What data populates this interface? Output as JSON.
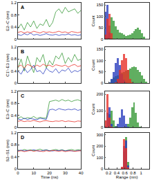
{
  "chart_data": [
    {
      "type": "line",
      "title": "A",
      "y_label": "E2–C (nm)",
      "tick_labels": "y",
      "x": [
        0,
        2,
        4,
        6,
        8,
        10,
        12,
        14,
        16,
        18,
        20,
        22,
        24,
        26,
        28,
        30,
        32,
        34,
        36,
        38,
        40
      ],
      "xlim": [
        0,
        40
      ],
      "xticks": [
        0,
        10,
        20,
        30,
        40
      ],
      "ylim": [
        0,
        1.2
      ],
      "yticks": [
        0,
        0.4,
        0.8,
        1.2
      ],
      "series": [
        {
          "color": "#3a9a3a",
          "values": [
            0.35,
            0.5,
            0.3,
            0.55,
            0.4,
            0.6,
            0.35,
            0.5,
            0.45,
            0.65,
            0.4,
            0.55,
            0.9,
            1.0,
            0.85,
            1.05,
            0.9,
            0.95,
            1.0,
            0.85,
            0.95
          ]
        },
        {
          "color": "#2b3fbf",
          "values": [
            0.15,
            0.12,
            0.18,
            0.14,
            0.2,
            0.13,
            0.16,
            0.12,
            0.15,
            0.18,
            0.14,
            0.13,
            0.16,
            0.12,
            0.15,
            0.14,
            0.17,
            0.13,
            0.15,
            0.12,
            0.14
          ]
        },
        {
          "color": "#e8312a",
          "values": [
            0.22,
            0.25,
            0.2,
            0.24,
            0.21,
            0.26,
            0.23,
            0.2,
            0.25,
            0.22,
            0.24,
            0.21,
            0.23,
            0.26,
            0.22,
            0.24,
            0.2,
            0.25,
            0.23,
            0.21,
            0.24
          ]
        }
      ]
    },
    {
      "type": "histogram",
      "y_label": "Count",
      "tick_labels": "y",
      "bins": [
        0.1,
        0.15,
        0.2,
        0.25,
        0.3,
        0.35,
        0.4,
        0.45,
        0.5,
        0.55,
        0.6,
        0.65,
        0.7,
        0.75,
        0.8,
        0.85,
        0.9,
        0.95,
        1.0,
        1.05,
        1.1,
        1.15,
        1.2
      ],
      "xlim": [
        0.1,
        1.2
      ],
      "xticks": [
        0.2,
        0.4,
        0.6,
        0.8,
        1
      ],
      "ylim": [
        0,
        160
      ],
      "yticks": [
        0,
        50,
        100,
        150
      ],
      "series": [
        {
          "color": "#3a9a3a",
          "values": [
            0,
            10,
            60,
            95,
            80,
            55,
            40,
            30,
            25,
            20,
            15,
            18,
            20,
            25,
            35,
            45,
            50,
            40,
            25,
            10,
            3,
            0
          ]
        },
        {
          "color": "#2b3fbf",
          "values": [
            120,
            150,
            30,
            2,
            0,
            0,
            0,
            0,
            0,
            0,
            0,
            0,
            0,
            0,
            0,
            0,
            0,
            0,
            0,
            0,
            0,
            0
          ]
        },
        {
          "color": "#e8312a",
          "values": [
            20,
            90,
            110,
            25,
            3,
            0,
            0,
            0,
            0,
            0,
            0,
            0,
            0,
            0,
            0,
            0,
            0,
            0,
            0,
            0,
            0,
            0
          ]
        }
      ]
    },
    {
      "type": "line",
      "title": "B",
      "y_label": "C1'–E3 (nm)",
      "tick_labels": "y",
      "x": [
        0,
        2,
        4,
        6,
        8,
        10,
        12,
        14,
        16,
        18,
        20,
        22,
        24,
        26,
        28,
        30,
        32,
        34,
        36,
        38,
        40
      ],
      "xlim": [
        0,
        40
      ],
      "xticks": [
        0,
        10,
        20,
        30,
        40
      ],
      "ylim": [
        0,
        1.2
      ],
      "yticks": [
        0,
        0.4,
        0.8,
        1.2
      ],
      "series": [
        {
          "color": "#3a9a3a",
          "values": [
            0.5,
            0.8,
            0.4,
            0.9,
            0.6,
            0.35,
            0.85,
            0.7,
            0.95,
            0.5,
            0.75,
            0.6,
            0.9,
            0.8,
            1.0,
            0.65,
            0.85,
            0.7,
            0.95,
            0.75,
            0.8
          ]
        },
        {
          "color": "#2b3fbf",
          "values": [
            0.4,
            0.3,
            0.5,
            0.35,
            0.45,
            0.6,
            0.38,
            0.42,
            0.3,
            0.5,
            0.4,
            0.36,
            0.48,
            0.33,
            0.44,
            0.4,
            0.5,
            0.35,
            0.42,
            0.38,
            0.45
          ]
        },
        {
          "color": "#e8312a",
          "values": [
            0.55,
            0.6,
            0.5,
            0.62,
            0.58,
            0.52,
            0.6,
            0.55,
            0.63,
            0.57,
            0.6,
            0.54,
            0.61,
            0.58,
            0.56,
            0.6,
            0.53,
            0.59,
            0.62,
            0.55,
            0.58
          ]
        }
      ]
    },
    {
      "type": "histogram",
      "y_label": "Count",
      "tick_labels": "y",
      "bins": [
        0.1,
        0.15,
        0.2,
        0.25,
        0.3,
        0.35,
        0.4,
        0.45,
        0.5,
        0.55,
        0.6,
        0.65,
        0.7,
        0.75,
        0.8,
        0.85,
        0.9,
        0.95,
        1.0,
        1.05,
        1.1,
        1.15,
        1.2
      ],
      "xlim": [
        0.1,
        1.2
      ],
      "xticks": [
        0.2,
        0.4,
        0.6,
        0.8,
        1
      ],
      "ylim": [
        0,
        160
      ],
      "yticks": [
        0,
        50,
        100,
        150
      ],
      "series": [
        {
          "color": "#3a9a3a",
          "values": [
            0,
            0,
            5,
            15,
            25,
            30,
            35,
            40,
            45,
            50,
            55,
            60,
            65,
            70,
            75,
            70,
            60,
            50,
            35,
            20,
            8,
            2
          ]
        },
        {
          "color": "#2b3fbf",
          "values": [
            0,
            0,
            5,
            20,
            50,
            90,
            110,
            80,
            40,
            15,
            5,
            2,
            0,
            0,
            0,
            0,
            0,
            0,
            0,
            0,
            0,
            0
          ]
        },
        {
          "color": "#e8312a",
          "values": [
            0,
            0,
            0,
            0,
            0,
            5,
            20,
            60,
            100,
            130,
            110,
            60,
            20,
            5,
            0,
            0,
            0,
            0,
            0,
            0,
            0,
            0
          ]
        }
      ]
    },
    {
      "type": "line",
      "title": "C",
      "y_label": "E3–C (nm)",
      "tick_labels": "y",
      "x": [
        0,
        2,
        4,
        6,
        8,
        10,
        12,
        14,
        16,
        18,
        20,
        22,
        24,
        26,
        28,
        30,
        32,
        34,
        36,
        38,
        40
      ],
      "xlim": [
        0,
        40
      ],
      "xticks": [
        0,
        10,
        20,
        30,
        40
      ],
      "ylim": [
        0,
        1.2
      ],
      "yticks": [
        0,
        0.4,
        0.8,
        1.2
      ],
      "series": [
        {
          "color": "#3a9a3a",
          "values": [
            0.3,
            0.35,
            0.28,
            0.32,
            0.3,
            0.36,
            0.29,
            0.33,
            0.31,
            0.3,
            0.85,
            0.88,
            0.9,
            0.86,
            0.92,
            0.87,
            0.9,
            0.85,
            0.89,
            0.91,
            0.87
          ]
        },
        {
          "color": "#2b3fbf",
          "values": [
            0.28,
            0.25,
            0.3,
            0.26,
            0.29,
            0.27,
            0.25,
            0.3,
            0.28,
            0.26,
            0.58,
            0.6,
            0.56,
            0.62,
            0.59,
            0.57,
            0.6,
            0.58,
            0.61,
            0.56,
            0.59
          ]
        },
        {
          "color": "#e8312a",
          "values": [
            0.2,
            0.22,
            0.19,
            0.21,
            0.2,
            0.23,
            0.2,
            0.18,
            0.21,
            0.22,
            0.2,
            0.19,
            0.21,
            0.2,
            0.22,
            0.19,
            0.21,
            0.2,
            0.18,
            0.21,
            0.2
          ]
        }
      ]
    },
    {
      "type": "histogram",
      "y_label": "Count",
      "tick_labels": "y",
      "bins": [
        0.1,
        0.15,
        0.2,
        0.25,
        0.3,
        0.35,
        0.4,
        0.45,
        0.5,
        0.55,
        0.6,
        0.65,
        0.7,
        0.75,
        0.8,
        0.85,
        0.9,
        0.95,
        1.0,
        1.05,
        1.1,
        1.15,
        1.2
      ],
      "xlim": [
        0.1,
        1.2
      ],
      "xticks": [
        0.2,
        0.4,
        0.6,
        0.8,
        1
      ],
      "ylim": [
        0,
        220
      ],
      "yticks": [
        0,
        100,
        200
      ],
      "series": [
        {
          "color": "#3a9a3a",
          "values": [
            0,
            5,
            80,
            100,
            40,
            10,
            2,
            0,
            0,
            0,
            5,
            20,
            60,
            120,
            150,
            90,
            30,
            5,
            0,
            0,
            0,
            0
          ]
        },
        {
          "color": "#2b3fbf",
          "values": [
            10,
            90,
            120,
            20,
            2,
            5,
            20,
            60,
            110,
            70,
            20,
            3,
            0,
            0,
            0,
            0,
            0,
            0,
            0,
            0,
            0,
            0
          ]
        },
        {
          "color": "#e8312a",
          "values": [
            40,
            200,
            60,
            5,
            0,
            0,
            0,
            0,
            0,
            0,
            0,
            0,
            0,
            0,
            0,
            0,
            0,
            0,
            0,
            0,
            0,
            0
          ]
        }
      ]
    },
    {
      "type": "line",
      "title": "D",
      "y_label": "S2–S1 (nm)",
      "x_label": "Time (ns)",
      "x": [
        0,
        2,
        4,
        6,
        8,
        10,
        12,
        14,
        16,
        18,
        20,
        22,
        24,
        26,
        28,
        30,
        32,
        34,
        36,
        38,
        40
      ],
      "xlim": [
        0,
        40
      ],
      "xticks": [
        0,
        10,
        20,
        30,
        40
      ],
      "ylim": [
        0,
        1.2
      ],
      "yticks": [
        0,
        0.4,
        0.8,
        1.2
      ],
      "series": [
        {
          "color": "#3a9a3a",
          "values": [
            0.62,
            0.6,
            0.64,
            0.61,
            0.63,
            0.6,
            0.62,
            0.65,
            0.61,
            0.63,
            0.6,
            0.62,
            0.64,
            0.61,
            0.63,
            0.6,
            0.62,
            0.64,
            0.61,
            0.63,
            0.62
          ]
        },
        {
          "color": "#2b3fbf",
          "values": [
            0.6,
            0.62,
            0.59,
            0.61,
            0.6,
            0.63,
            0.6,
            0.58,
            0.61,
            0.62,
            0.6,
            0.59,
            0.61,
            0.6,
            0.62,
            0.59,
            0.61,
            0.6,
            0.58,
            0.61,
            0.6
          ]
        },
        {
          "color": "#e8312a",
          "values": [
            0.58,
            0.6,
            0.57,
            0.59,
            0.61,
            0.58,
            0.6,
            0.59,
            0.57,
            0.6,
            0.58,
            0.61,
            0.59,
            0.58,
            0.6,
            0.57,
            0.59,
            0.6,
            0.58,
            0.59,
            0.6
          ]
        }
      ]
    },
    {
      "type": "histogram",
      "y_label": "Count",
      "x_label": "Range (nm)",
      "bins": [
        0.1,
        0.15,
        0.2,
        0.25,
        0.3,
        0.35,
        0.4,
        0.45,
        0.5,
        0.55,
        0.6,
        0.65,
        0.7,
        0.75,
        0.8,
        0.85,
        0.9,
        0.95,
        1.0,
        1.05,
        1.1,
        1.15,
        1.2
      ],
      "xlim": [
        0.1,
        1.2
      ],
      "xticks": [
        0.2,
        0.4,
        0.6,
        0.8,
        1
      ],
      "ylim": [
        0,
        320
      ],
      "yticks": [
        0,
        100,
        200,
        300
      ],
      "series": [
        {
          "color": "#3a9a3a",
          "values": [
            0,
            0,
            0,
            0,
            0,
            0,
            0,
            0,
            5,
            150,
            280,
            60,
            3,
            0,
            0,
            0,
            0,
            0,
            0,
            0,
            0,
            0
          ]
        },
        {
          "color": "#2b3fbf",
          "values": [
            0,
            0,
            0,
            0,
            0,
            0,
            0,
            0,
            10,
            200,
            250,
            30,
            0,
            0,
            0,
            0,
            0,
            0,
            0,
            0,
            0,
            0
          ]
        },
        {
          "color": "#e8312a",
          "values": [
            0,
            0,
            0,
            0,
            0,
            0,
            0,
            0,
            20,
            260,
            180,
            15,
            0,
            0,
            0,
            0,
            0,
            0,
            0,
            0,
            0,
            0
          ]
        }
      ]
    }
  ]
}
